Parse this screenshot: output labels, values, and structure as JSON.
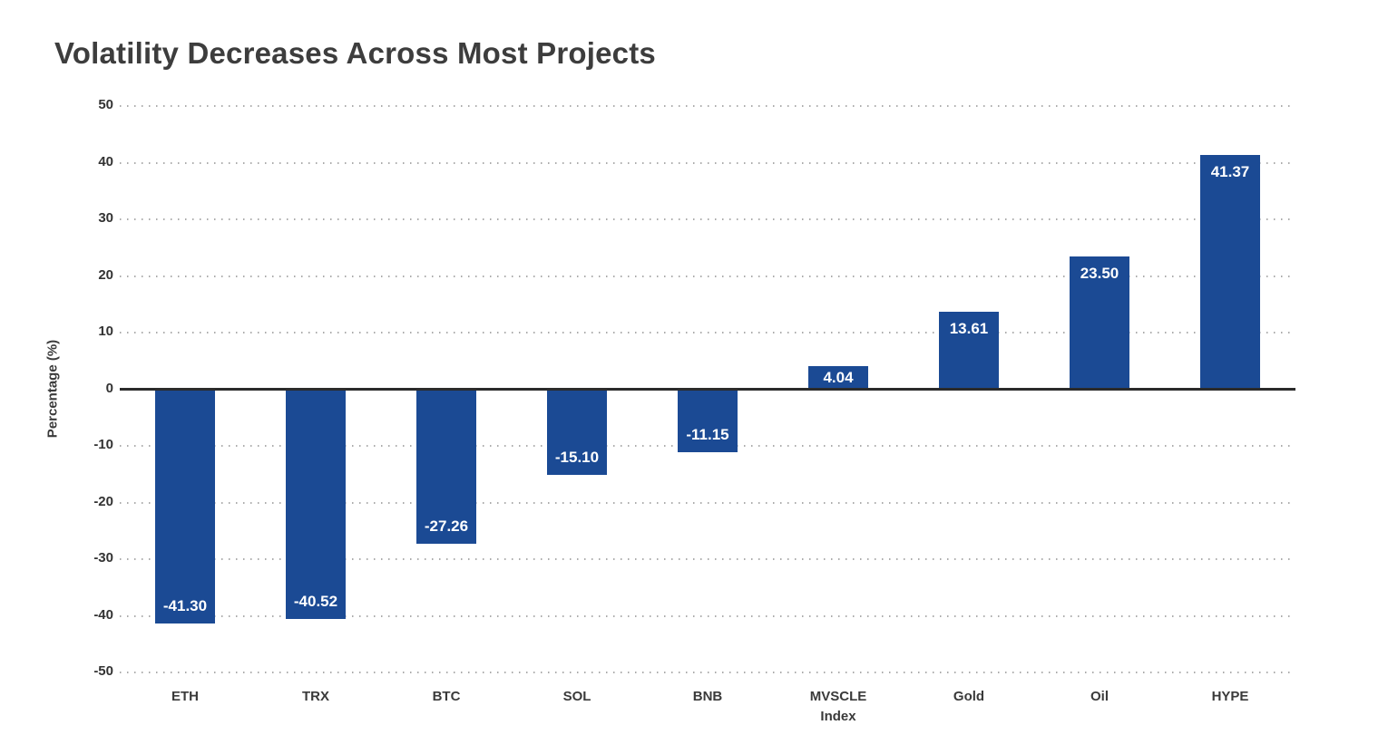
{
  "title": "Volatility Decreases Across Most Projects",
  "colors": {
    "background": "#ffffff",
    "bar": "#1b4a94",
    "title_text": "#3d3d3d",
    "tick_text": "#333333",
    "zero_line": "#2b2b2b",
    "gridline": "#ababab",
    "value_label_text": "#ffffff"
  },
  "chart_data": {
    "type": "bar",
    "title": "Volatility Decreases Across Most Projects",
    "categories": [
      "ETH",
      "TRX",
      "BTC",
      "SOL",
      "BNB",
      "MVSCLE\nIndex",
      "Gold",
      "Oil",
      "HYPE"
    ],
    "values": [
      -41.3,
      -40.52,
      -27.26,
      -15.1,
      -11.15,
      4.04,
      13.61,
      23.5,
      41.37
    ],
    "value_labels": [
      "-41.30",
      "-40.52",
      "-27.26",
      "-15.10",
      "-11.15",
      "4.04",
      "13.61",
      "23.50",
      "41.37"
    ],
    "xlabel": "",
    "ylabel": "Percentage (%)",
    "ylim": [
      -50,
      50
    ],
    "yticks": [
      50,
      40,
      30,
      20,
      10,
      0,
      -10,
      -20,
      -30,
      -40,
      -50
    ],
    "grid": "horizontal-dotted",
    "zero_line": "solid",
    "legend": "none",
    "bar_color": "#1b4a94",
    "value_label_position": "inside-end"
  }
}
